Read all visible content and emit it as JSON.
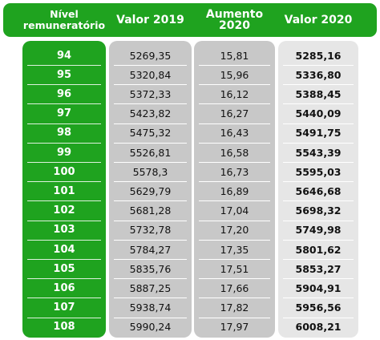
{
  "header": {
    "level": "Nível remuneratório",
    "value_2019": "Valor 2019",
    "increase_2020": "Aumento 2020",
    "value_2020": "Valor 2020"
  },
  "rows": [
    {
      "level": "94",
      "value_2019": "5269,35",
      "increase": "15,81",
      "value_2020": "5285,16"
    },
    {
      "level": "95",
      "value_2019": "5320,84",
      "increase": "15,96",
      "value_2020": "5336,80"
    },
    {
      "level": "96",
      "value_2019": "5372,33",
      "increase": "16,12",
      "value_2020": "5388,45"
    },
    {
      "level": "97",
      "value_2019": "5423,82",
      "increase": "16,27",
      "value_2020": "5440,09"
    },
    {
      "level": "98",
      "value_2019": "5475,32",
      "increase": "16,43",
      "value_2020": "5491,75"
    },
    {
      "level": "99",
      "value_2019": "5526,81",
      "increase": "16,58",
      "value_2020": "5543,39"
    },
    {
      "level": "100",
      "value_2019": "5578,3",
      "increase": "16,73",
      "value_2020": "5595,03"
    },
    {
      "level": "101",
      "value_2019": "5629,79",
      "increase": "16,89",
      "value_2020": "5646,68"
    },
    {
      "level": "102",
      "value_2019": "5681,28",
      "increase": "17,04",
      "value_2020": "5698,32"
    },
    {
      "level": "103",
      "value_2019": "5732,78",
      "increase": "17,20",
      "value_2020": "5749,98"
    },
    {
      "level": "104",
      "value_2019": "5784,27",
      "increase": "17,35",
      "value_2020": "5801,62"
    },
    {
      "level": "105",
      "value_2019": "5835,76",
      "increase": "17,51",
      "value_2020": "5853,27"
    },
    {
      "level": "106",
      "value_2019": "5887,25",
      "increase": "17,66",
      "value_2020": "5904,91"
    },
    {
      "level": "107",
      "value_2019": "5938,74",
      "increase": "17,82",
      "value_2020": "5956,56"
    },
    {
      "level": "108",
      "value_2019": "5990,24",
      "increase": "17,97",
      "value_2020": "6008,21"
    }
  ],
  "colors": {
    "green": "#1fa31f",
    "gray": "#c8c8c8",
    "light_gray": "#e6e6e6"
  }
}
